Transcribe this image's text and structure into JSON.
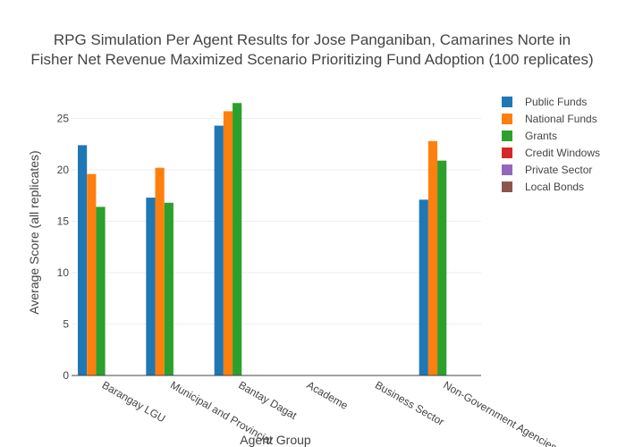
{
  "chart_data": {
    "type": "bar",
    "title_lines": [
      "RPG Simulation Per Agent Results for Jose Panganiban, Camarines Norte in",
      "Fisher Net Revenue Maximized Scenario Prioritizing Fund Adoption (100 replicates)"
    ],
    "xlabel": "Agent Group",
    "ylabel": "Average Score (all replicates)",
    "categories": [
      "Barangay LGU",
      "Municipal and Provincial",
      "Bantay Dagat",
      "Academe",
      "Business Sector",
      "Non-Government Agencies"
    ],
    "ylim": [
      0,
      28
    ],
    "yticks": [
      0,
      5,
      10,
      15,
      20,
      25
    ],
    "grid": true,
    "legend_position": "top-right",
    "series": [
      {
        "name": "Public Funds",
        "color": "#1f77b4",
        "values": [
          22.4,
          17.3,
          24.3,
          0,
          0,
          17.1
        ]
      },
      {
        "name": "National Funds",
        "color": "#ff7f0e",
        "values": [
          19.6,
          20.2,
          25.7,
          0,
          0,
          22.8
        ]
      },
      {
        "name": "Grants",
        "color": "#2ca02c",
        "values": [
          16.4,
          16.8,
          26.5,
          0,
          0,
          20.9
        ]
      },
      {
        "name": "Credit Windows",
        "color": "#d62728",
        "values": [
          0,
          0,
          0,
          0,
          0,
          0
        ]
      },
      {
        "name": "Private Sector",
        "color": "#9467bd",
        "values": [
          0,
          0,
          0,
          0,
          0,
          0
        ]
      },
      {
        "name": "Local Bonds",
        "color": "#8c564b",
        "values": [
          0,
          0,
          0,
          0,
          0,
          0
        ]
      }
    ]
  }
}
